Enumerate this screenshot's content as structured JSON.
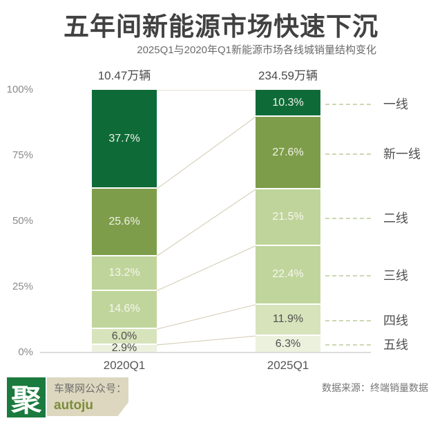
{
  "title": "五年间新能源市场快速下沉",
  "subtitle": "2025Q1与2020年Q1新能源市场各线城销量结构变化",
  "chart_data": {
    "type": "bar",
    "subtype": "100%-stacked-column",
    "title": "五年间新能源市场快速下沉",
    "subtitle": "2025Q1与2020年Q1新能源市场各线城销量结构变化",
    "categories": [
      "2020Q1",
      "2025Q1"
    ],
    "tiers": [
      "一线",
      "新一线",
      "二线",
      "三线",
      "四线",
      "五线"
    ],
    "series": [
      {
        "name": "2020Q1",
        "total_label": "10.47万辆",
        "values": [
          37.7,
          25.6,
          13.2,
          14.6,
          6.0,
          2.9
        ],
        "display": [
          "37.7%",
          "25.6%",
          "13.2%",
          "14.6%",
          "6.0%",
          "2.9%"
        ]
      },
      {
        "name": "2025Q1",
        "total_label": "234.59万辆",
        "values": [
          10.3,
          27.6,
          21.5,
          22.4,
          11.9,
          6.3
        ],
        "display": [
          "10.3%",
          "27.6%",
          "21.5%",
          "22.4%",
          "11.9%",
          "6.3%"
        ]
      }
    ],
    "yticks": [
      "100%",
      "75%",
      "50%",
      "25%",
      "0%"
    ],
    "ylim": [
      0,
      100
    ],
    "grid": false,
    "legend_position": "right",
    "tier_colors": [
      "#0e6b38",
      "#7e9d4a",
      "#bfd49a",
      "#c0d59c",
      "#d7e3ba",
      "#ecf1de"
    ],
    "tier_value_text_colors": [
      "#f2f2ea",
      "#f2f2ea",
      "#f7f7ef",
      "#f7f7ef",
      "#4f4f4f",
      "#4f4f4f"
    ],
    "connector_color": "#d8d1bd",
    "leader_dash_color": "#ccd8b2"
  },
  "footer": {
    "logo_glyph": "聚",
    "account_label": "车聚网公众号：",
    "account_name": "autoju",
    "source": "数据来源：终端销量数据"
  }
}
